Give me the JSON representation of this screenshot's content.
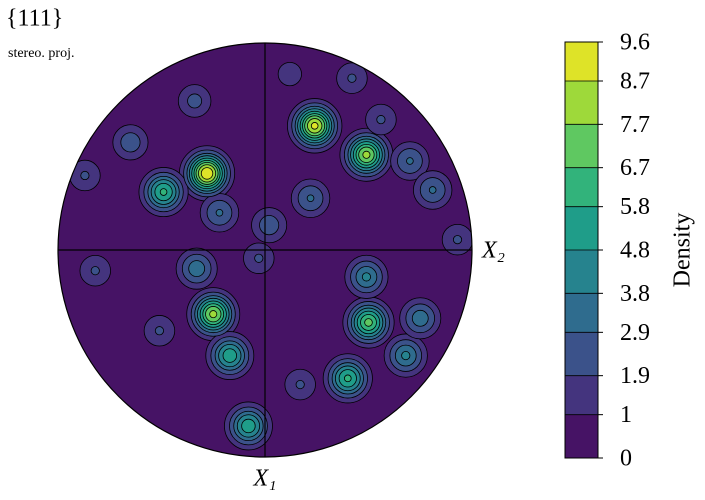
{
  "chart_data": {
    "type": "pole-figure",
    "title": "{111}",
    "subtitle": "stereo. proj.",
    "x_label": "X₂",
    "y_label": "X₁",
    "colorbar_label": "Density",
    "colormap": "viridis",
    "clim": [
      0,
      9.6
    ],
    "cticks": [
      0,
      1,
      1.9,
      2.9,
      3.8,
      4.8,
      5.8,
      6.7,
      7.7,
      8.7,
      9.6
    ],
    "xlim": [
      -1,
      1
    ],
    "ylim": [
      -1,
      1
    ],
    "peaks": [
      {
        "x": 0.24,
        "y": 0.6,
        "value": 9
      },
      {
        "x": -0.28,
        "y": 0.37,
        "value": 9.6
      },
      {
        "x": 0.49,
        "y": 0.46,
        "value": 8
      },
      {
        "x": -0.49,
        "y": 0.28,
        "value": 6
      },
      {
        "x": -0.25,
        "y": -0.31,
        "value": 8
      },
      {
        "x": 0.5,
        "y": -0.35,
        "value": 7
      },
      {
        "x": 0.4,
        "y": -0.62,
        "value": 6
      },
      {
        "x": -0.08,
        "y": -0.85,
        "value": 5.5
      },
      {
        "x": -0.17,
        "y": -0.51,
        "value": 5.5
      },
      {
        "x": 0.68,
        "y": -0.51,
        "value": 4
      },
      {
        "x": 0.75,
        "y": -0.33,
        "value": 3.5
      },
      {
        "x": 0.49,
        "y": -0.13,
        "value": 4
      },
      {
        "x": -0.33,
        "y": -0.09,
        "value": 3.5
      },
      {
        "x": -0.22,
        "y": 0.18,
        "value": 3
      },
      {
        "x": 0.22,
        "y": 0.25,
        "value": 3
      },
      {
        "x": -0.65,
        "y": 0.52,
        "value": 2.5
      },
      {
        "x": -0.82,
        "y": -0.1,
        "value": 2
      },
      {
        "x": 0.7,
        "y": 0.43,
        "value": 3
      },
      {
        "x": 0.81,
        "y": 0.29,
        "value": 3
      },
      {
        "x": 0.02,
        "y": 0.12,
        "value": 2.5
      },
      {
        "x": -0.34,
        "y": 0.72,
        "value": 2.2
      },
      {
        "x": 0.42,
        "y": 0.83,
        "value": 2
      },
      {
        "x": 0.93,
        "y": 0.05,
        "value": 2
      },
      {
        "x": -0.87,
        "y": 0.36,
        "value": 2
      },
      {
        "x": -0.03,
        "y": -0.04,
        "value": 2
      },
      {
        "x": -0.51,
        "y": -0.39,
        "value": 2
      },
      {
        "x": 0.17,
        "y": -0.65,
        "value": 2
      },
      {
        "x": 0.56,
        "y": 0.63,
        "value": 2
      },
      {
        "x": 0.12,
        "y": 0.85,
        "value": 1.5
      }
    ]
  }
}
